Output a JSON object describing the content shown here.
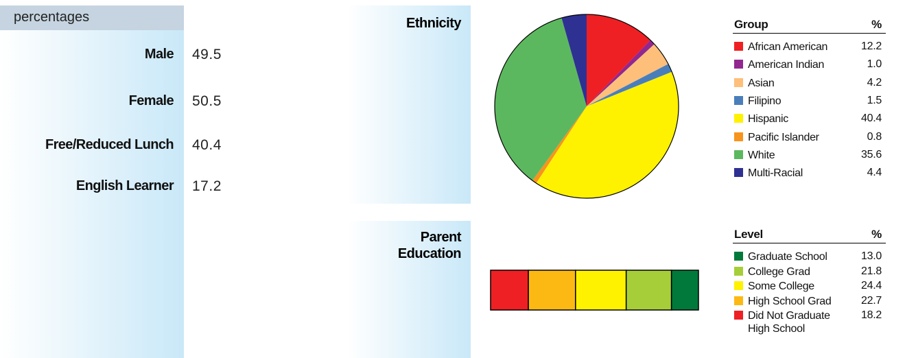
{
  "demographics": {
    "header": "percentages",
    "rows": [
      {
        "label": "Male",
        "value": 49.5
      },
      {
        "label": "Female",
        "value": 50.5
      },
      {
        "label": "Free/Reduced Lunch",
        "value": 40.4
      },
      {
        "label": "English Learner",
        "value": 17.2
      }
    ]
  },
  "chart_data": [
    {
      "type": "pie",
      "title": "Ethnicity",
      "legend_header": "Group",
      "value_header": "%",
      "categories": [
        "African American",
        "American Indian",
        "Asian",
        "Filipino",
        "Hispanic",
        "Pacific Islander",
        "White",
        "Multi-Racial"
      ],
      "values": [
        12.2,
        1.0,
        4.2,
        1.5,
        40.4,
        0.8,
        35.6,
        4.4
      ],
      "value_labels": [
        "12.2",
        "1.0",
        "4.2",
        "1.5",
        "40.4",
        "0.8",
        "35.6",
        "4.4"
      ],
      "colors": [
        "#ee2024",
        "#92278f",
        "#fdbf7a",
        "#4a7ebb",
        "#fff200",
        "#f7941d",
        "#5cb85f",
        "#2e3192"
      ]
    },
    {
      "type": "stacked_bar",
      "title": "Parent Education",
      "legend_header": "Level",
      "value_header": "%",
      "series": [
        {
          "name": "Graduate School",
          "color": "#00793a",
          "values": [
            13.0
          ],
          "value_labels": [
            "13.0"
          ]
        },
        {
          "name": "College Grad",
          "color": "#a6ce39",
          "values": [
            21.8
          ],
          "value_labels": [
            "21.8"
          ]
        },
        {
          "name": "Some College",
          "color": "#fff200",
          "values": [
            24.4
          ],
          "value_labels": [
            "24.4"
          ]
        },
        {
          "name": "High School Grad",
          "color": "#fdb913",
          "values": [
            22.7
          ],
          "value_labels": [
            "22.7"
          ]
        },
        {
          "name": "Did Not Graduate High School",
          "color": "#ee2024",
          "values": [
            18.2
          ],
          "value_labels": [
            "18.2"
          ]
        }
      ]
    }
  ]
}
